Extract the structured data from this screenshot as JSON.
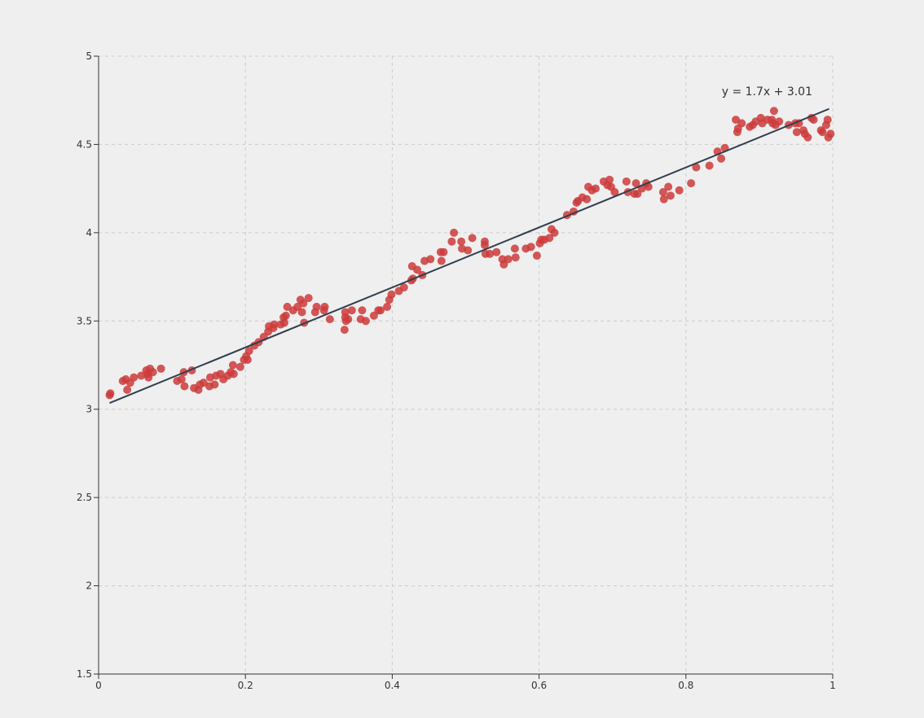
{
  "chart_data": {
    "type": "scatter",
    "title": "",
    "xlabel": "",
    "ylabel": "",
    "xlim": [
      0,
      1
    ],
    "ylim": [
      1.5,
      5
    ],
    "x_ticks": [
      "0",
      "0.2",
      "0.4",
      "0.6",
      "0.8",
      "1"
    ],
    "y_ticks": [
      "1.5",
      "2",
      "2.5",
      "3",
      "3.5",
      "4",
      "4.5",
      "5"
    ],
    "grid": true,
    "point_color": "#cc3b3b",
    "line_color": "#2f3f4f",
    "fit_equation": "y = 1.7x + 3.01",
    "fit_line": {
      "slope": 1.7,
      "intercept": 3.01,
      "x_start": 0.015,
      "x_end": 0.995
    },
    "points": [
      [
        0.015,
        3.08
      ],
      [
        0.016,
        3.09
      ],
      [
        0.033,
        3.16
      ],
      [
        0.037,
        3.17
      ],
      [
        0.039,
        3.11
      ],
      [
        0.043,
        3.15
      ],
      [
        0.048,
        3.18
      ],
      [
        0.058,
        3.19
      ],
      [
        0.065,
        3.22
      ],
      [
        0.067,
        3.2
      ],
      [
        0.068,
        3.18
      ],
      [
        0.07,
        3.23
      ],
      [
        0.074,
        3.21
      ],
      [
        0.085,
        3.23
      ],
      [
        0.107,
        3.16
      ],
      [
        0.113,
        3.17
      ],
      [
        0.116,
        3.21
      ],
      [
        0.117,
        3.13
      ],
      [
        0.127,
        3.22
      ],
      [
        0.13,
        3.12
      ],
      [
        0.136,
        3.11
      ],
      [
        0.138,
        3.14
      ],
      [
        0.143,
        3.15
      ],
      [
        0.151,
        3.13
      ],
      [
        0.152,
        3.18
      ],
      [
        0.158,
        3.14
      ],
      [
        0.16,
        3.19
      ],
      [
        0.166,
        3.2
      ],
      [
        0.17,
        3.17
      ],
      [
        0.176,
        3.19
      ],
      [
        0.18,
        3.21
      ],
      [
        0.184,
        3.2
      ],
      [
        0.183,
        3.25
      ],
      [
        0.193,
        3.24
      ],
      [
        0.198,
        3.28
      ],
      [
        0.201,
        3.3
      ],
      [
        0.203,
        3.28
      ],
      [
        0.205,
        3.33
      ],
      [
        0.212,
        3.36
      ],
      [
        0.218,
        3.38
      ],
      [
        0.225,
        3.41
      ],
      [
        0.231,
        3.44
      ],
      [
        0.232,
        3.47
      ],
      [
        0.238,
        3.46
      ],
      [
        0.239,
        3.48
      ],
      [
        0.248,
        3.48
      ],
      [
        0.252,
        3.52
      ],
      [
        0.253,
        3.49
      ],
      [
        0.255,
        3.53
      ],
      [
        0.257,
        3.58
      ],
      [
        0.265,
        3.56
      ],
      [
        0.271,
        3.58
      ],
      [
        0.275,
        3.62
      ],
      [
        0.277,
        3.55
      ],
      [
        0.28,
        3.49
      ],
      [
        0.279,
        3.6
      ],
      [
        0.286,
        3.63
      ],
      [
        0.295,
        3.55
      ],
      [
        0.297,
        3.58
      ],
      [
        0.307,
        3.56
      ],
      [
        0.308,
        3.58
      ],
      [
        0.315,
        3.51
      ],
      [
        0.336,
        3.52
      ],
      [
        0.335,
        3.45
      ],
      [
        0.337,
        3.5
      ],
      [
        0.336,
        3.55
      ],
      [
        0.34,
        3.51
      ],
      [
        0.345,
        3.56
      ],
      [
        0.357,
        3.51
      ],
      [
        0.359,
        3.56
      ],
      [
        0.364,
        3.5
      ],
      [
        0.375,
        3.53
      ],
      [
        0.381,
        3.56
      ],
      [
        0.384,
        3.56
      ],
      [
        0.393,
        3.58
      ],
      [
        0.396,
        3.62
      ],
      [
        0.399,
        3.65
      ],
      [
        0.409,
        3.67
      ],
      [
        0.416,
        3.69
      ],
      [
        0.426,
        3.73
      ],
      [
        0.428,
        3.74
      ],
      [
        0.427,
        3.81
      ],
      [
        0.434,
        3.79
      ],
      [
        0.441,
        3.76
      ],
      [
        0.444,
        3.84
      ],
      [
        0.452,
        3.85
      ],
      [
        0.467,
        3.84
      ],
      [
        0.466,
        3.89
      ],
      [
        0.47,
        3.89
      ],
      [
        0.481,
        3.95
      ],
      [
        0.484,
        4.0
      ],
      [
        0.495,
        3.91
      ],
      [
        0.494,
        3.95
      ],
      [
        0.503,
        3.9
      ],
      [
        0.509,
        3.97
      ],
      [
        0.526,
        3.93
      ],
      [
        0.526,
        3.95
      ],
      [
        0.527,
        3.88
      ],
      [
        0.533,
        3.88
      ],
      [
        0.542,
        3.89
      ],
      [
        0.55,
        3.85
      ],
      [
        0.552,
        3.82
      ],
      [
        0.558,
        3.85
      ],
      [
        0.567,
        3.91
      ],
      [
        0.568,
        3.86
      ],
      [
        0.582,
        3.91
      ],
      [
        0.589,
        3.92
      ],
      [
        0.597,
        3.87
      ],
      [
        0.601,
        3.94
      ],
      [
        0.603,
        3.96
      ],
      [
        0.607,
        3.96
      ],
      [
        0.614,
        3.97
      ],
      [
        0.617,
        4.02
      ],
      [
        0.621,
        4.0
      ],
      [
        0.638,
        4.1
      ],
      [
        0.647,
        4.12
      ],
      [
        0.651,
        4.17
      ],
      [
        0.653,
        4.18
      ],
      [
        0.659,
        4.2
      ],
      [
        0.665,
        4.19
      ],
      [
        0.667,
        4.26
      ],
      [
        0.672,
        4.24
      ],
      [
        0.677,
        4.25
      ],
      [
        0.688,
        4.29
      ],
      [
        0.693,
        4.27
      ],
      [
        0.696,
        4.3
      ],
      [
        0.698,
        4.26
      ],
      [
        0.703,
        4.23
      ],
      [
        0.719,
        4.29
      ],
      [
        0.721,
        4.23
      ],
      [
        0.73,
        4.22
      ],
      [
        0.732,
        4.28
      ],
      [
        0.734,
        4.22
      ],
      [
        0.74,
        4.25
      ],
      [
        0.746,
        4.28
      ],
      [
        0.749,
        4.26
      ],
      [
        0.769,
        4.23
      ],
      [
        0.77,
        4.19
      ],
      [
        0.776,
        4.26
      ],
      [
        0.779,
        4.21
      ],
      [
        0.791,
        4.24
      ],
      [
        0.807,
        4.28
      ],
      [
        0.814,
        4.37
      ],
      [
        0.832,
        4.38
      ],
      [
        0.843,
        4.46
      ],
      [
        0.848,
        4.42
      ],
      [
        0.853,
        4.48
      ],
      [
        0.868,
        4.64
      ],
      [
        0.87,
        4.57
      ],
      [
        0.871,
        4.59
      ],
      [
        0.876,
        4.62
      ],
      [
        0.887,
        4.6
      ],
      [
        0.891,
        4.61
      ],
      [
        0.895,
        4.63
      ],
      [
        0.902,
        4.65
      ],
      [
        0.904,
        4.62
      ],
      [
        0.911,
        4.64
      ],
      [
        0.917,
        4.64
      ],
      [
        0.918,
        4.62
      ],
      [
        0.92,
        4.69
      ],
      [
        0.922,
        4.61
      ],
      [
        0.927,
        4.63
      ],
      [
        0.94,
        4.61
      ],
      [
        0.949,
        4.62
      ],
      [
        0.951,
        4.57
      ],
      [
        0.954,
        4.62
      ],
      [
        0.96,
        4.58
      ],
      [
        0.962,
        4.56
      ],
      [
        0.966,
        4.54
      ],
      [
        0.971,
        4.65
      ],
      [
        0.974,
        4.64
      ],
      [
        0.984,
        4.58
      ],
      [
        0.986,
        4.57
      ],
      [
        0.991,
        4.61
      ],
      [
        0.993,
        4.64
      ],
      [
        0.994,
        4.54
      ],
      [
        0.997,
        4.56
      ]
    ]
  }
}
